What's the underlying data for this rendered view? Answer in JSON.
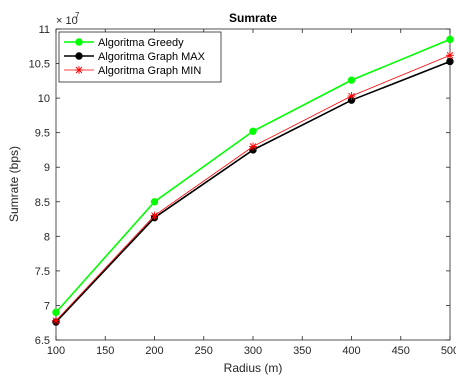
{
  "chart_data": {
    "type": "line",
    "title": "Sumrate",
    "xlabel": "Radius (m)",
    "ylabel": "Sumrate (bps)",
    "y_exponent_base": "× 10",
    "y_exponent_power": "7",
    "xlim": [
      100,
      500
    ],
    "ylim": [
      6.5,
      11
    ],
    "x_ticks": [
      100,
      150,
      200,
      250,
      300,
      350,
      400,
      450,
      500
    ],
    "y_ticks": [
      6.5,
      7,
      7.5,
      8,
      8.5,
      9,
      9.5,
      10,
      10.5,
      11
    ],
    "x": [
      100,
      200,
      300,
      400,
      500
    ],
    "grid": false,
    "legend_position": "top-left",
    "series": [
      {
        "name": "Algoritma Greedy",
        "values": [
          6.9,
          8.5,
          9.52,
          10.26,
          10.85
        ],
        "color": "#00ff00",
        "marker": "dot"
      },
      {
        "name": "Algoritma Graph MAX",
        "values": [
          6.76,
          8.27,
          9.25,
          9.97,
          10.53
        ],
        "color": "#000000",
        "marker": "dot"
      },
      {
        "name": "Algoritma Graph MIN",
        "values": [
          6.78,
          8.3,
          9.3,
          10.03,
          10.62
        ],
        "color": "#ff0000",
        "marker": "star"
      }
    ]
  }
}
